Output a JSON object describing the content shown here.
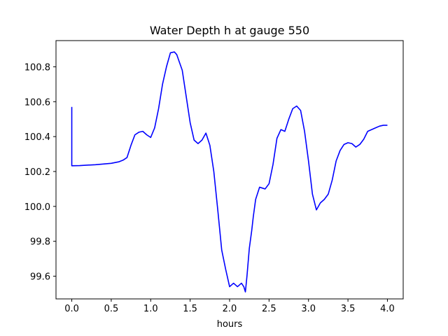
{
  "chart_data": {
    "type": "line",
    "title": "Water Depth h at gauge 550",
    "xlabel": "hours",
    "ylabel": "",
    "xlim": [
      -0.2,
      4.2
    ],
    "ylim": [
      99.47,
      100.95
    ],
    "xticks": [
      0.0,
      0.5,
      1.0,
      1.5,
      2.0,
      2.5,
      3.0,
      3.5,
      4.0
    ],
    "xtick_labels": [
      "0.0",
      "0.5",
      "1.0",
      "1.5",
      "2.0",
      "2.5",
      "3.0",
      "3.5",
      "4.0"
    ],
    "yticks": [
      99.6,
      99.8,
      100.0,
      100.2,
      100.4,
      100.6,
      100.8
    ],
    "ytick_labels": [
      "99.6",
      "99.8",
      "100.0",
      "100.2",
      "100.4",
      "100.6",
      "100.8"
    ],
    "grid": false,
    "series": [
      {
        "color": "#0000ff",
        "x": [
          0.0,
          0.0,
          0.001,
          0.1,
          0.3,
          0.5,
          0.6,
          0.65,
          0.7,
          0.75,
          0.8,
          0.85,
          0.9,
          0.95,
          1.0,
          1.05,
          1.1,
          1.15,
          1.2,
          1.25,
          1.3,
          1.33,
          1.4,
          1.45,
          1.5,
          1.55,
          1.6,
          1.65,
          1.7,
          1.75,
          1.8,
          1.85,
          1.9,
          1.95,
          2.0,
          2.05,
          2.1,
          2.15,
          2.18,
          2.2,
          2.22,
          2.25,
          2.28,
          2.3,
          2.33,
          2.38,
          2.45,
          2.5,
          2.55,
          2.6,
          2.65,
          2.7,
          2.75,
          2.8,
          2.85,
          2.9,
          2.95,
          3.0,
          3.05,
          3.1,
          3.15,
          3.2,
          3.25,
          3.3,
          3.35,
          3.4,
          3.45,
          3.5,
          3.55,
          3.6,
          3.65,
          3.7,
          3.75,
          3.8,
          3.85,
          3.9,
          3.95,
          4.0
        ],
        "y": [
          100.57,
          100.233,
          100.233,
          100.234,
          100.239,
          100.247,
          100.256,
          100.265,
          100.28,
          100.35,
          100.41,
          100.425,
          100.43,
          100.41,
          100.395,
          100.45,
          100.56,
          100.7,
          100.8,
          100.88,
          100.885,
          100.87,
          100.78,
          100.63,
          100.48,
          100.38,
          100.36,
          100.38,
          100.42,
          100.35,
          100.2,
          99.98,
          99.75,
          99.64,
          99.54,
          99.56,
          99.54,
          99.56,
          99.54,
          99.51,
          99.6,
          99.76,
          99.86,
          99.94,
          100.04,
          100.11,
          100.1,
          100.13,
          100.24,
          100.39,
          100.44,
          100.43,
          100.5,
          100.56,
          100.575,
          100.55,
          100.43,
          100.26,
          100.07,
          99.98,
          100.02,
          100.04,
          100.07,
          100.15,
          100.26,
          100.32,
          100.355,
          100.365,
          100.36,
          100.34,
          100.355,
          100.385,
          100.43,
          100.44,
          100.45,
          100.46,
          100.465,
          100.465
        ]
      }
    ]
  }
}
